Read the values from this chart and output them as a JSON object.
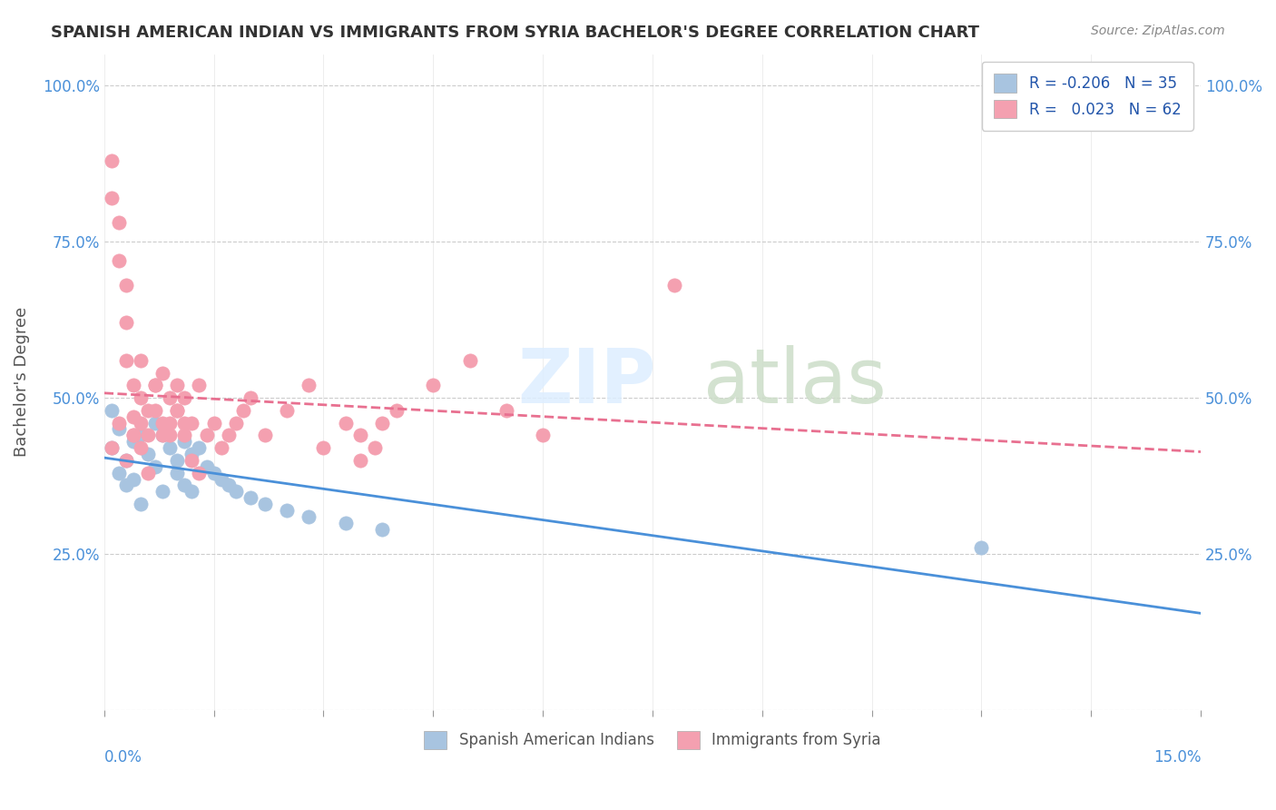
{
  "title": "SPANISH AMERICAN INDIAN VS IMMIGRANTS FROM SYRIA BACHELOR'S DEGREE CORRELATION CHART",
  "source": "Source: ZipAtlas.com",
  "ylabel": "Bachelor's Degree",
  "yticks": [
    0,
    0.25,
    0.5,
    0.75,
    1.0
  ],
  "ytick_labels": [
    "",
    "25.0%",
    "50.0%",
    "75.0%",
    "100.0%"
  ],
  "xlim": [
    0,
    0.15
  ],
  "ylim": [
    0,
    1.05
  ],
  "blue_color": "#a8c4e0",
  "pink_color": "#f4a0b0",
  "blue_line_color": "#4a90d9",
  "pink_line_color": "#e87090",
  "blue_scatter_x": [
    0.001,
    0.002,
    0.002,
    0.003,
    0.003,
    0.004,
    0.004,
    0.005,
    0.005,
    0.006,
    0.007,
    0.007,
    0.008,
    0.008,
    0.009,
    0.01,
    0.01,
    0.011,
    0.011,
    0.012,
    0.012,
    0.013,
    0.014,
    0.015,
    0.016,
    0.017,
    0.018,
    0.02,
    0.022,
    0.025,
    0.028,
    0.033,
    0.038,
    0.12,
    0.001
  ],
  "blue_scatter_y": [
    0.42,
    0.45,
    0.38,
    0.4,
    0.36,
    0.43,
    0.37,
    0.44,
    0.33,
    0.41,
    0.46,
    0.39,
    0.35,
    0.44,
    0.42,
    0.4,
    0.38,
    0.43,
    0.36,
    0.41,
    0.35,
    0.42,
    0.39,
    0.38,
    0.37,
    0.36,
    0.35,
    0.34,
    0.33,
    0.32,
    0.31,
    0.3,
    0.29,
    0.26,
    0.48
  ],
  "pink_scatter_x": [
    0.001,
    0.001,
    0.002,
    0.002,
    0.003,
    0.003,
    0.003,
    0.004,
    0.004,
    0.004,
    0.005,
    0.005,
    0.005,
    0.006,
    0.006,
    0.007,
    0.007,
    0.008,
    0.008,
    0.009,
    0.009,
    0.01,
    0.01,
    0.011,
    0.011,
    0.012,
    0.012,
    0.013,
    0.014,
    0.015,
    0.016,
    0.017,
    0.018,
    0.019,
    0.02,
    0.022,
    0.025,
    0.028,
    0.03,
    0.033,
    0.035,
    0.038,
    0.04,
    0.045,
    0.05,
    0.055,
    0.06,
    0.001,
    0.002,
    0.003,
    0.004,
    0.005,
    0.006,
    0.007,
    0.008,
    0.009,
    0.01,
    0.011,
    0.013,
    0.035,
    0.037,
    0.078
  ],
  "pink_scatter_y": [
    0.88,
    0.82,
    0.78,
    0.72,
    0.68,
    0.62,
    0.56,
    0.52,
    0.47,
    0.44,
    0.42,
    0.5,
    0.56,
    0.38,
    0.44,
    0.52,
    0.48,
    0.54,
    0.46,
    0.5,
    0.44,
    0.48,
    0.52,
    0.46,
    0.44,
    0.46,
    0.4,
    0.38,
    0.44,
    0.46,
    0.42,
    0.44,
    0.46,
    0.48,
    0.5,
    0.44,
    0.48,
    0.52,
    0.42,
    0.46,
    0.44,
    0.46,
    0.48,
    0.52,
    0.56,
    0.48,
    0.44,
    0.42,
    0.46,
    0.4,
    0.44,
    0.46,
    0.48,
    0.52,
    0.44,
    0.46,
    0.48,
    0.5,
    0.52,
    0.4,
    0.42,
    0.68
  ]
}
